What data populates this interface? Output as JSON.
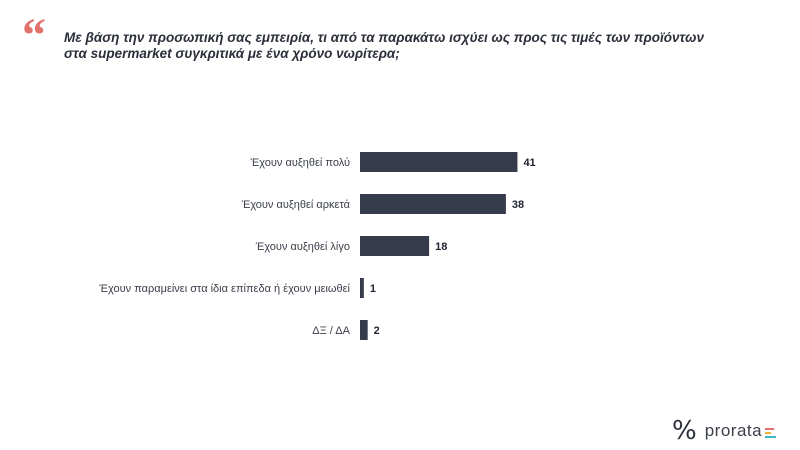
{
  "question": {
    "quote_glyph": "“",
    "line1": "Με βάση την προσωπική σας εμπειρία, τι από τα παρακάτω ισχύει ως προς τις τιμές των προϊόντων",
    "line2": "στα supermarket συγκριτικά με ένα χρόνο  νωρίτερα;"
  },
  "chart_data": {
    "type": "bar",
    "orientation": "horizontal",
    "categories": [
      "Έχουν αυξηθεί πολύ",
      "Έχουν αυξηθεί αρκετά",
      "Έχουν αυξηθεί λίγο",
      "Έχουν παραμείνει στα ίδια επίπεδα ή έχουν μειωθεί",
      "ΔΞ / ΔΑ"
    ],
    "values": [
      41,
      38,
      18,
      1,
      2
    ],
    "bar_color": "#363b4b",
    "xlim": [
      0,
      100
    ],
    "grid": false,
    "legend": "none"
  },
  "logo": {
    "mark": "%",
    "text": "prorata",
    "bar_colors": [
      "#e0716d",
      "#f2b33d",
      "#3fb6c7"
    ]
  }
}
